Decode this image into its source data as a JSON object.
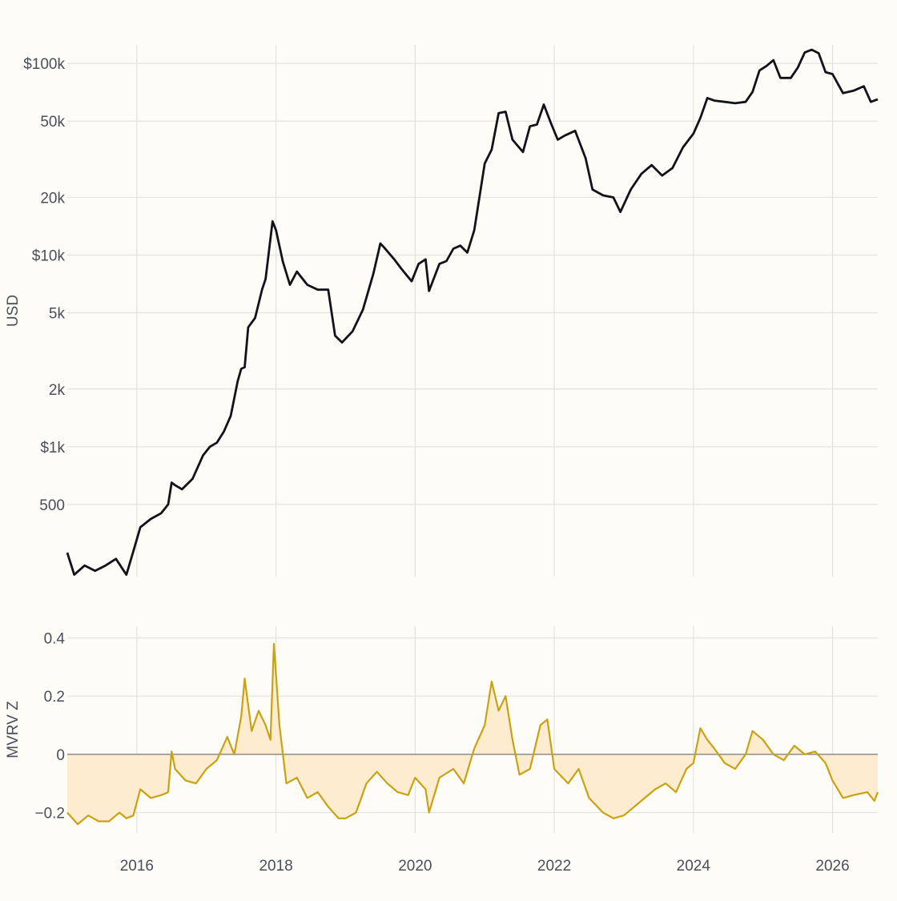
{
  "chart_data": [
    {
      "type": "line",
      "ylabel": "USD",
      "yscale": "log",
      "ylim": [
        210,
        125000
      ],
      "xlim": [
        2015.0,
        2026.65
      ],
      "grid": true,
      "colors": {
        "line": "#12131a",
        "grid": "#e2e2df",
        "background": "#fdfcf7"
      },
      "xticks": [
        {
          "value": 2016,
          "label": "2016"
        },
        {
          "value": 2018,
          "label": "2018"
        },
        {
          "value": 2020,
          "label": "2020"
        },
        {
          "value": 2022,
          "label": "2022"
        },
        {
          "value": 2024,
          "label": "2024"
        },
        {
          "value": 2026,
          "label": "2026"
        }
      ],
      "yticks": [
        {
          "value": 500,
          "label": "500"
        },
        {
          "value": 1000,
          "label": "$1k"
        },
        {
          "value": 2000,
          "label": "2k"
        },
        {
          "value": 5000,
          "label": "5k"
        },
        {
          "value": 10000,
          "label": "$10k"
        },
        {
          "value": 20000,
          "label": "20k"
        },
        {
          "value": 50000,
          "label": "50k"
        },
        {
          "value": 100000,
          "label": "$100k"
        }
      ],
      "series": [
        {
          "x": [
            2015.0,
            2015.1,
            2015.25,
            2015.4,
            2015.55,
            2015.7,
            2015.85,
            2015.95,
            2016.05,
            2016.2,
            2016.35,
            2016.45,
            2016.5,
            2016.55,
            2016.65,
            2016.8,
            2016.95,
            2017.05,
            2017.15,
            2017.25,
            2017.35,
            2017.45,
            2017.5,
            2017.55,
            2017.6,
            2017.7,
            2017.8,
            2017.85,
            2017.95,
            2018.0,
            2018.1,
            2018.2,
            2018.3,
            2018.45,
            2018.6,
            2018.75,
            2018.85,
            2018.95,
            2019.1,
            2019.25,
            2019.4,
            2019.5,
            2019.55,
            2019.7,
            2019.8,
            2019.95,
            2020.05,
            2020.15,
            2020.2,
            2020.35,
            2020.45,
            2020.55,
            2020.65,
            2020.75,
            2020.85,
            2021.0,
            2021.1,
            2021.2,
            2021.3,
            2021.4,
            2021.55,
            2021.65,
            2021.75,
            2021.85,
            2021.95,
            2022.05,
            2022.15,
            2022.3,
            2022.45,
            2022.55,
            2022.7,
            2022.85,
            2022.95,
            2023.1,
            2023.25,
            2023.4,
            2023.55,
            2023.7,
            2023.85,
            2024.0,
            2024.1,
            2024.2,
            2024.3,
            2024.45,
            2024.6,
            2024.75,
            2024.85,
            2024.95,
            2025.05,
            2025.15,
            2025.25,
            2025.4,
            2025.5,
            2025.6,
            2025.7,
            2025.8,
            2025.9,
            2026.0,
            2026.15,
            2026.3,
            2026.45,
            2026.55,
            2026.65
          ],
          "values": [
            280,
            215,
            240,
            225,
            240,
            260,
            215,
            285,
            380,
            420,
            450,
            500,
            650,
            630,
            600,
            680,
            900,
            1000,
            1050,
            1200,
            1450,
            2200,
            2550,
            2600,
            4200,
            4700,
            6600,
            7500,
            15000,
            13500,
            9200,
            7000,
            8200,
            7000,
            6600,
            6600,
            3800,
            3500,
            4000,
            5200,
            8000,
            11500,
            11000,
            9500,
            8500,
            7300,
            9000,
            9500,
            6500,
            9000,
            9300,
            10800,
            11200,
            10300,
            13500,
            30000,
            35500,
            55000,
            56000,
            40000,
            34500,
            47000,
            48000,
            61000,
            49000,
            40000,
            42000,
            44500,
            32000,
            22000,
            20500,
            20000,
            16800,
            22000,
            26500,
            29500,
            26000,
            28500,
            36500,
            43000,
            52000,
            66000,
            64000,
            63000,
            62000,
            63000,
            71000,
            92000,
            97000,
            104000,
            84000,
            84000,
            95000,
            114000,
            118000,
            113000,
            90000,
            88000,
            70000,
            72000,
            76000,
            63000,
            65000
          ]
        }
      ]
    },
    {
      "type": "area",
      "ylabel": "MVRV Z",
      "ylim": [
        -0.27,
        0.44
      ],
      "xlim": [
        2015.0,
        2026.65
      ],
      "grid": true,
      "colors": {
        "line": "#c9a214",
        "fill": "#fdeccf",
        "zero_line": "#8a8a8a",
        "grid": "#e2e2df"
      },
      "xticks": [
        {
          "value": 2016,
          "label": "2016"
        },
        {
          "value": 2018,
          "label": "2018"
        },
        {
          "value": 2020,
          "label": "2020"
        },
        {
          "value": 2022,
          "label": "2022"
        },
        {
          "value": 2024,
          "label": "2024"
        },
        {
          "value": 2026,
          "label": "2026"
        }
      ],
      "yticks": [
        {
          "value": -0.2,
          "label": "−0.2"
        },
        {
          "value": 0,
          "label": "0"
        },
        {
          "value": 0.2,
          "label": "0.2"
        },
        {
          "value": 0.4,
          "label": "0.4"
        }
      ],
      "series": [
        {
          "x": [
            2015.0,
            2015.15,
            2015.3,
            2015.45,
            2015.6,
            2015.75,
            2015.85,
            2015.95,
            2016.05,
            2016.2,
            2016.35,
            2016.45,
            2016.5,
            2016.55,
            2016.7,
            2016.85,
            2017.0,
            2017.15,
            2017.3,
            2017.4,
            2017.5,
            2017.55,
            2017.65,
            2017.75,
            2017.85,
            2017.92,
            2017.97,
            2018.05,
            2018.15,
            2018.3,
            2018.45,
            2018.6,
            2018.75,
            2018.9,
            2019.0,
            2019.15,
            2019.3,
            2019.45,
            2019.6,
            2019.75,
            2019.9,
            2020.0,
            2020.15,
            2020.2,
            2020.35,
            2020.55,
            2020.7,
            2020.85,
            2021.0,
            2021.1,
            2021.2,
            2021.3,
            2021.4,
            2021.5,
            2021.65,
            2021.8,
            2021.9,
            2022.0,
            2022.2,
            2022.35,
            2022.5,
            2022.7,
            2022.85,
            2023.0,
            2023.15,
            2023.3,
            2023.45,
            2023.6,
            2023.75,
            2023.9,
            2024.0,
            2024.1,
            2024.2,
            2024.3,
            2024.45,
            2024.6,
            2024.75,
            2024.85,
            2025.0,
            2025.15,
            2025.3,
            2025.45,
            2025.6,
            2025.75,
            2025.9,
            2026.0,
            2026.15,
            2026.3,
            2026.5,
            2026.6,
            2026.65
          ],
          "values": [
            -0.2,
            -0.24,
            -0.21,
            -0.23,
            -0.23,
            -0.2,
            -0.22,
            -0.21,
            -0.12,
            -0.15,
            -0.14,
            -0.13,
            0.01,
            -0.05,
            -0.09,
            -0.1,
            -0.05,
            -0.02,
            0.06,
            0.0,
            0.13,
            0.26,
            0.08,
            0.15,
            0.1,
            0.05,
            0.38,
            0.1,
            -0.1,
            -0.08,
            -0.15,
            -0.13,
            -0.18,
            -0.22,
            -0.22,
            -0.2,
            -0.1,
            -0.06,
            -0.1,
            -0.13,
            -0.14,
            -0.08,
            -0.12,
            -0.2,
            -0.08,
            -0.05,
            -0.1,
            0.02,
            0.1,
            0.25,
            0.15,
            0.2,
            0.05,
            -0.07,
            -0.05,
            0.1,
            0.12,
            -0.05,
            -0.1,
            -0.05,
            -0.15,
            -0.2,
            -0.22,
            -0.21,
            -0.18,
            -0.15,
            -0.12,
            -0.1,
            -0.13,
            -0.05,
            -0.03,
            0.09,
            0.05,
            0.02,
            -0.03,
            -0.05,
            0.0,
            0.08,
            0.05,
            0.0,
            -0.02,
            0.03,
            0.0,
            0.01,
            -0.03,
            -0.09,
            -0.15,
            -0.14,
            -0.13,
            -0.16,
            -0.13
          ]
        }
      ]
    }
  ]
}
